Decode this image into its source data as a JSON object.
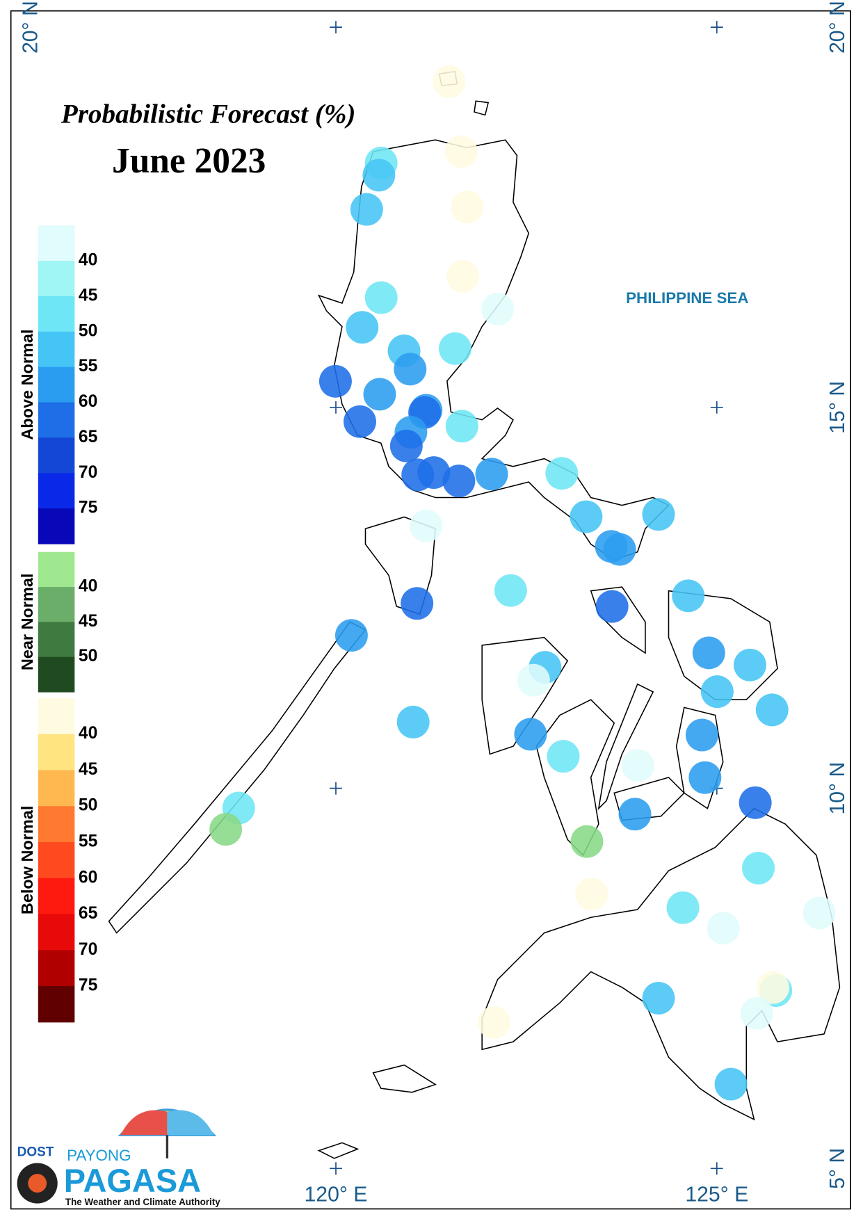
{
  "title": "Probabilistic Forecast (%)",
  "subtitle": "June 2023",
  "sea_label": "PHILIPPINE SEA",
  "lonlim": [
    115.73,
    126.75
  ],
  "latlim": [
    4.46,
    20.21
  ],
  "coordinate_labels": {
    "left_top": "20° N",
    "right_top": "20° N",
    "right_15": "15° N",
    "right_10": "10° N",
    "right_5": "5° N",
    "bottom_120": "120° E",
    "bottom_125": "125° E"
  },
  "legend": [
    {
      "name": "Above Normal",
      "colors": [
        "#e0fcfc",
        "#a0f5f5",
        "#6ee6f5",
        "#45c5f5",
        "#2b9df0",
        "#1e6ee8",
        "#1447d6",
        "#0a28e8",
        "#0808b8"
      ],
      "labels": [
        40,
        45,
        50,
        55,
        60,
        65,
        70,
        75
      ]
    },
    {
      "name": "Near Normal",
      "colors": [
        "#a0e890",
        "#6aae6a",
        "#3f7a40",
        "#204a20"
      ],
      "labels": [
        40,
        45,
        50
      ]
    },
    {
      "name": "Below Normal",
      "colors": [
        "#fffbe0",
        "#ffe480",
        "#ffb850",
        "#ff7a30",
        "#ff4a20",
        "#ff1a10",
        "#e80a0a",
        "#b00000",
        "#600000"
      ],
      "labels": [
        40,
        45,
        50,
        55,
        60,
        65,
        70,
        75
      ]
    }
  ],
  "stations": [
    {
      "lon": 121.48,
      "lat": 19.28,
      "color": "#fffbe0"
    },
    {
      "lon": 121.64,
      "lat": 18.36,
      "color": "#fffbe0"
    },
    {
      "lon": 121.72,
      "lat": 17.63,
      "color": "#fffbe0"
    },
    {
      "lon": 121.66,
      "lat": 16.72,
      "color": "#fffbe0"
    },
    {
      "lon": 120.59,
      "lat": 18.21,
      "color": "#6ee6f5"
    },
    {
      "lon": 120.56,
      "lat": 18.05,
      "color": "#45c5f5"
    },
    {
      "lon": 120.4,
      "lat": 17.6,
      "color": "#45c5f5"
    },
    {
      "lon": 120.59,
      "lat": 16.44,
      "color": "#6ee6f5"
    },
    {
      "lon": 120.34,
      "lat": 16.05,
      "color": "#45c5f5"
    },
    {
      "lon": 122.12,
      "lat": 16.29,
      "color": "#e0fcfc"
    },
    {
      "lon": 121.56,
      "lat": 15.77,
      "color": "#6ee6f5"
    },
    {
      "lon": 120.89,
      "lat": 15.74,
      "color": "#45c5f5"
    },
    {
      "lon": 120.97,
      "lat": 15.5,
      "color": "#2b9df0"
    },
    {
      "lon": 119.99,
      "lat": 15.34,
      "color": "#1e6ee8"
    },
    {
      "lon": 120.57,
      "lat": 15.17,
      "color": "#2b9df0"
    },
    {
      "lon": 121.18,
      "lat": 14.96,
      "color": "#2b9df0"
    },
    {
      "lon": 121.16,
      "lat": 14.93,
      "color": "#1e6ee8"
    },
    {
      "lon": 120.31,
      "lat": 14.81,
      "color": "#1e6ee8"
    },
    {
      "lon": 121.65,
      "lat": 14.75,
      "color": "#6ee6f5"
    },
    {
      "lon": 120.98,
      "lat": 14.67,
      "color": "#2b9df0"
    },
    {
      "lon": 120.92,
      "lat": 14.49,
      "color": "#1e6ee8"
    },
    {
      "lon": 121.07,
      "lat": 14.11,
      "color": "#1e6ee8"
    },
    {
      "lon": 121.28,
      "lat": 14.14,
      "color": "#1e6ee8"
    },
    {
      "lon": 121.61,
      "lat": 14.03,
      "color": "#1e6ee8"
    },
    {
      "lon": 122.04,
      "lat": 14.12,
      "color": "#2b9df0"
    },
    {
      "lon": 122.96,
      "lat": 14.13,
      "color": "#6ee6f5"
    },
    {
      "lon": 121.18,
      "lat": 13.44,
      "color": "#e0fcfc"
    },
    {
      "lon": 123.28,
      "lat": 13.56,
      "color": "#45c5f5"
    },
    {
      "lon": 124.23,
      "lat": 13.59,
      "color": "#45c5f5"
    },
    {
      "lon": 123.61,
      "lat": 13.17,
      "color": "#2b9df0"
    },
    {
      "lon": 123.72,
      "lat": 13.13,
      "color": "#2b9df0"
    },
    {
      "lon": 122.29,
      "lat": 12.59,
      "color": "#6ee6f5"
    },
    {
      "lon": 121.06,
      "lat": 12.42,
      "color": "#1e6ee8"
    },
    {
      "lon": 123.62,
      "lat": 12.38,
      "color": "#1e6ee8"
    },
    {
      "lon": 124.62,
      "lat": 12.52,
      "color": "#45c5f5"
    },
    {
      "lon": 120.2,
      "lat": 12.0,
      "color": "#2b9df0"
    },
    {
      "lon": 124.89,
      "lat": 11.77,
      "color": "#2b9df0"
    },
    {
      "lon": 125.43,
      "lat": 11.61,
      "color": "#45c5f5"
    },
    {
      "lon": 122.74,
      "lat": 11.58,
      "color": "#45c5f5"
    },
    {
      "lon": 122.59,
      "lat": 11.41,
      "color": "#e0fcfc"
    },
    {
      "lon": 125.0,
      "lat": 11.26,
      "color": "#45c5f5"
    },
    {
      "lon": 125.72,
      "lat": 11.02,
      "color": "#45c5f5"
    },
    {
      "lon": 121.01,
      "lat": 10.86,
      "color": "#45c5f5"
    },
    {
      "lon": 122.55,
      "lat": 10.7,
      "color": "#2b9df0"
    },
    {
      "lon": 124.8,
      "lat": 10.69,
      "color": "#2b9df0"
    },
    {
      "lon": 122.98,
      "lat": 10.41,
      "color": "#6ee6f5"
    },
    {
      "lon": 123.96,
      "lat": 10.29,
      "color": "#e0fcfc"
    },
    {
      "lon": 124.84,
      "lat": 10.13,
      "color": "#2b9df0"
    },
    {
      "lon": 125.5,
      "lat": 9.8,
      "color": "#1e6ee8"
    },
    {
      "lon": 118.72,
      "lat": 9.73,
      "color": "#6ee6f5"
    },
    {
      "lon": 123.92,
      "lat": 9.65,
      "color": "#2b9df0"
    },
    {
      "lon": 118.55,
      "lat": 9.45,
      "color": "#88d888"
    },
    {
      "lon": 123.29,
      "lat": 9.29,
      "color": "#88d888"
    },
    {
      "lon": 125.54,
      "lat": 8.94,
      "color": "#6ee6f5"
    },
    {
      "lon": 123.35,
      "lat": 8.6,
      "color": "#fffbe0"
    },
    {
      "lon": 124.55,
      "lat": 8.42,
      "color": "#6ee6f5"
    },
    {
      "lon": 126.34,
      "lat": 8.35,
      "color": "#e0fcfc"
    },
    {
      "lon": 125.08,
      "lat": 8.15,
      "color": "#e0fcfc"
    },
    {
      "lon": 125.77,
      "lat": 7.33,
      "color": "#6ee6f5"
    },
    {
      "lon": 125.73,
      "lat": 7.37,
      "color": "#fffbe0"
    },
    {
      "lon": 124.23,
      "lat": 7.23,
      "color": "#45c5f5"
    },
    {
      "lon": 125.52,
      "lat": 7.03,
      "color": "#e0fcfc"
    },
    {
      "lon": 122.07,
      "lat": 6.91,
      "color": "#fffbe0"
    },
    {
      "lon": 125.18,
      "lat": 6.1,
      "color": "#45c5f5"
    }
  ],
  "logo": {
    "agency": "DOST",
    "brand_top": "PAYONG",
    "brand": "PAGASA",
    "tagline": "The Weather and Climate Authority"
  }
}
